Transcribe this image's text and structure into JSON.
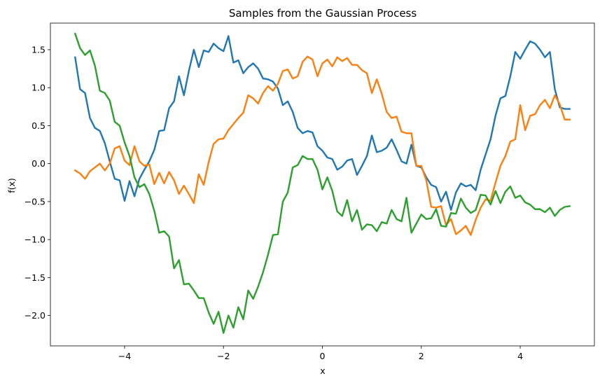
{
  "chart_data": {
    "type": "line",
    "title": "Samples from the Gaussian Process",
    "xlabel": "x",
    "ylabel": "f(x)",
    "xlim": [
      -5.5,
      5.5
    ],
    "ylim": [
      -2.4,
      1.85
    ],
    "xticks": [
      -4,
      -2,
      0,
      2,
      4
    ],
    "yticks": [
      -2.0,
      -1.5,
      -1.0,
      -0.5,
      0.0,
      0.5,
      1.0,
      1.5
    ],
    "xtick_labels": [
      "−4",
      "−2",
      "0",
      "2",
      "4"
    ],
    "ytick_labels": [
      "−2.0",
      "−1.5",
      "−1.0",
      "−0.5",
      "0.0",
      "0.5",
      "1.0",
      "1.5"
    ],
    "grid": false,
    "legend": "none",
    "series": [
      {
        "color": "#1f77b4",
        "x": [
          -5.0,
          -4.9,
          -4.8,
          -4.7,
          -4.6,
          -4.5,
          -4.4,
          -4.3,
          -4.2,
          -4.1,
          -4.0,
          -3.9,
          -3.8,
          -3.7,
          -3.6,
          -3.5,
          -3.4,
          -3.3,
          -3.2,
          -3.1,
          -3.0,
          -2.9,
          -2.8,
          -2.7,
          -2.6,
          -2.5,
          -2.4,
          -2.3,
          -2.2,
          -2.1,
          -2.0,
          -1.9,
          -1.8,
          -1.7,
          -1.6,
          -1.5,
          -1.4,
          -1.3,
          -1.2,
          -1.1,
          -1.0,
          -0.9,
          -0.8,
          -0.7,
          -0.6,
          -0.5,
          -0.4,
          -0.3,
          -0.2,
          -0.1,
          0.0,
          0.1,
          0.2,
          0.3,
          0.4,
          0.5,
          0.6,
          0.7,
          0.8,
          0.9,
          1.0,
          1.1,
          1.2,
          1.3,
          1.4,
          1.5,
          1.6,
          1.7,
          1.8,
          1.9,
          2.0,
          2.1,
          2.2,
          2.3,
          2.4,
          2.5,
          2.6,
          2.7,
          2.8,
          2.9,
          3.0,
          3.1,
          3.2,
          3.3,
          3.4,
          3.5,
          3.6,
          3.7,
          3.8,
          3.9,
          4.0,
          4.1,
          4.2,
          4.3,
          4.4,
          4.5,
          4.6,
          4.7,
          4.8,
          4.9,
          5.0
        ],
        "y": [
          1.4,
          0.98,
          0.93,
          0.6,
          0.47,
          0.43,
          0.27,
          0.03,
          -0.2,
          -0.22,
          -0.49,
          -0.23,
          -0.43,
          -0.2,
          -0.08,
          0.03,
          0.18,
          0.43,
          0.44,
          0.73,
          0.82,
          1.15,
          0.9,
          1.22,
          1.5,
          1.27,
          1.49,
          1.47,
          1.58,
          1.52,
          1.48,
          1.68,
          1.33,
          1.36,
          1.19,
          1.27,
          1.32,
          1.25,
          1.12,
          1.11,
          1.08,
          0.99,
          0.77,
          0.82,
          0.68,
          0.47,
          0.4,
          0.43,
          0.41,
          0.23,
          0.17,
          0.08,
          0.06,
          -0.08,
          -0.04,
          0.04,
          0.06,
          -0.15,
          -0.03,
          0.1,
          0.37,
          0.15,
          0.17,
          0.21,
          0.32,
          0.18,
          0.03,
          0.0,
          0.25,
          -0.03,
          -0.05,
          -0.18,
          -0.28,
          -0.31,
          -0.5,
          -0.37,
          -0.61,
          -0.38,
          -0.26,
          -0.3,
          -0.28,
          -0.35,
          -0.08,
          0.12,
          0.32,
          0.63,
          0.86,
          0.89,
          1.15,
          1.47,
          1.38,
          1.5,
          1.61,
          1.58,
          1.5,
          1.4,
          1.47,
          0.98,
          0.74,
          0.72,
          0.72
        ]
      },
      {
        "color": "#ff7f0e",
        "x": [
          -5.0,
          -4.9,
          -4.8,
          -4.7,
          -4.6,
          -4.5,
          -4.4,
          -4.3,
          -4.2,
          -4.1,
          -4.0,
          -3.9,
          -3.8,
          -3.7,
          -3.6,
          -3.5,
          -3.4,
          -3.3,
          -3.2,
          -3.1,
          -3.0,
          -2.9,
          -2.8,
          -2.7,
          -2.6,
          -2.5,
          -2.4,
          -2.3,
          -2.2,
          -2.1,
          -2.0,
          -1.9,
          -1.8,
          -1.7,
          -1.6,
          -1.5,
          -1.4,
          -1.3,
          -1.2,
          -1.1,
          -1.0,
          -0.9,
          -0.8,
          -0.7,
          -0.6,
          -0.5,
          -0.4,
          -0.3,
          -0.2,
          -0.1,
          0.0,
          0.1,
          0.2,
          0.3,
          0.4,
          0.5,
          0.6,
          0.7,
          0.8,
          0.9,
          1.0,
          1.1,
          1.2,
          1.3,
          1.4,
          1.5,
          1.6,
          1.7,
          1.8,
          1.9,
          2.0,
          2.1,
          2.2,
          2.3,
          2.4,
          2.5,
          2.6,
          2.7,
          2.8,
          2.9,
          3.0,
          3.1,
          3.2,
          3.3,
          3.4,
          3.5,
          3.6,
          3.7,
          3.8,
          3.9,
          4.0,
          4.1,
          4.2,
          4.3,
          4.4,
          4.5,
          4.6,
          4.7,
          4.8,
          4.9,
          5.0
        ],
        "y": [
          -0.09,
          -0.13,
          -0.2,
          -0.1,
          -0.05,
          0.0,
          -0.09,
          0.0,
          0.2,
          0.23,
          0.04,
          -0.02,
          0.23,
          0.03,
          -0.03,
          -0.01,
          -0.27,
          -0.12,
          -0.26,
          -0.11,
          -0.22,
          -0.4,
          -0.29,
          -0.4,
          -0.52,
          -0.14,
          -0.28,
          0.02,
          0.26,
          0.32,
          0.33,
          0.44,
          0.52,
          0.6,
          0.67,
          0.9,
          0.86,
          0.79,
          0.93,
          1.02,
          0.96,
          1.05,
          1.22,
          1.24,
          1.12,
          1.15,
          1.34,
          1.41,
          1.37,
          1.15,
          1.32,
          1.37,
          1.28,
          1.4,
          1.35,
          1.39,
          1.3,
          1.3,
          1.23,
          1.19,
          0.93,
          1.11,
          0.92,
          0.68,
          0.6,
          0.62,
          0.42,
          0.4,
          0.4,
          -0.03,
          -0.03,
          -0.22,
          -0.57,
          -0.58,
          -0.56,
          -0.81,
          -0.73,
          -0.93,
          -0.88,
          -0.82,
          -0.94,
          -0.74,
          -0.58,
          -0.47,
          -0.49,
          -0.25,
          -0.03,
          0.1,
          0.29,
          0.32,
          0.77,
          0.44,
          0.63,
          0.65,
          0.77,
          0.84,
          0.73,
          0.9,
          0.78,
          0.58,
          0.58
        ]
      },
      {
        "color": "#2ca02c",
        "x": [
          -5.0,
          -4.9,
          -4.8,
          -4.7,
          -4.6,
          -4.5,
          -4.4,
          -4.3,
          -4.2,
          -4.1,
          -4.0,
          -3.9,
          -3.8,
          -3.7,
          -3.6,
          -3.5,
          -3.4,
          -3.3,
          -3.2,
          -3.1,
          -3.0,
          -2.9,
          -2.8,
          -2.7,
          -2.6,
          -2.5,
          -2.4,
          -2.3,
          -2.2,
          -2.1,
          -2.0,
          -1.9,
          -1.8,
          -1.7,
          -1.6,
          -1.5,
          -1.4,
          -1.3,
          -1.2,
          -1.1,
          -1.0,
          -0.9,
          -0.8,
          -0.7,
          -0.6,
          -0.5,
          -0.4,
          -0.3,
          -0.2,
          -0.1,
          0.0,
          0.1,
          0.2,
          0.3,
          0.4,
          0.5,
          0.6,
          0.7,
          0.8,
          0.9,
          1.0,
          1.1,
          1.2,
          1.3,
          1.4,
          1.5,
          1.6,
          1.7,
          1.8,
          1.9,
          2.0,
          2.1,
          2.2,
          2.3,
          2.4,
          2.5,
          2.6,
          2.7,
          2.8,
          2.9,
          3.0,
          3.1,
          3.2,
          3.3,
          3.4,
          3.5,
          3.6,
          3.7,
          3.8,
          3.9,
          4.0,
          4.1,
          4.2,
          4.3,
          4.4,
          4.5,
          4.6,
          4.7,
          4.8,
          4.9,
          5.0
        ],
        "y": [
          1.71,
          1.52,
          1.43,
          1.49,
          1.29,
          0.96,
          0.93,
          0.83,
          0.55,
          0.5,
          0.28,
          0.1,
          -0.18,
          -0.31,
          -0.27,
          -0.4,
          -0.62,
          -0.91,
          -0.89,
          -0.96,
          -1.38,
          -1.27,
          -1.59,
          -1.58,
          -1.67,
          -1.77,
          -1.77,
          -1.96,
          -2.11,
          -1.95,
          -2.23,
          -2.0,
          -2.16,
          -1.89,
          -2.05,
          -1.67,
          -1.78,
          -1.62,
          -1.43,
          -1.2,
          -0.94,
          -0.93,
          -0.5,
          -0.38,
          -0.05,
          -0.02,
          0.1,
          0.06,
          0.06,
          -0.08,
          -0.34,
          -0.18,
          -0.36,
          -0.63,
          -0.69,
          -0.48,
          -0.76,
          -0.61,
          -0.87,
          -0.8,
          -0.81,
          -0.89,
          -0.77,
          -0.79,
          -0.61,
          -0.73,
          -0.76,
          -0.45,
          -0.91,
          -0.79,
          -0.67,
          -0.73,
          -0.72,
          -0.6,
          -0.82,
          -0.83,
          -0.65,
          -0.66,
          -0.46,
          -0.58,
          -0.65,
          -0.61,
          -0.41,
          -0.42,
          -0.54,
          -0.36,
          -0.52,
          -0.37,
          -0.3,
          -0.45,
          -0.42,
          -0.51,
          -0.54,
          -0.6,
          -0.6,
          -0.64,
          -0.58,
          -0.69,
          -0.61,
          -0.57,
          -0.56
        ]
      }
    ]
  }
}
